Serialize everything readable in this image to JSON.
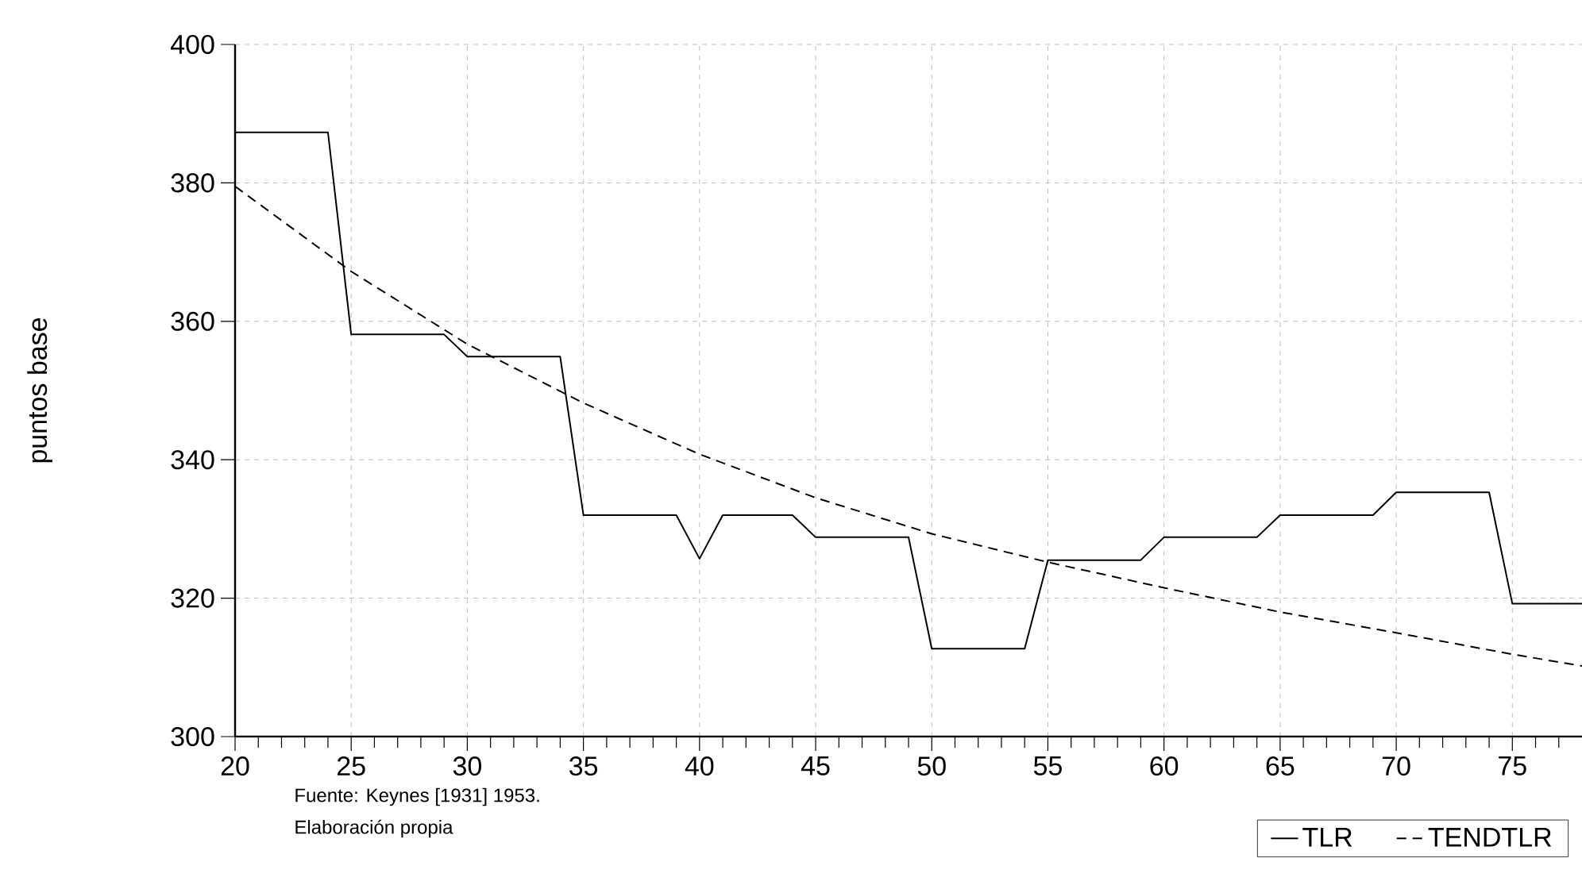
{
  "chart_data": {
    "type": "line",
    "ylabel": "puntos base",
    "annotations": [
      "Fuente: Keynes [1931] 1953.",
      "Elaboración propia"
    ],
    "xlim": [
      20,
      78
    ],
    "ylim": [
      300,
      400
    ],
    "xticks": [
      20,
      {
        "value": 21,
        "label": null
      },
      {
        "value": 22,
        "label": null
      },
      {
        "value": 23,
        "label": null
      },
      {
        "value": 24,
        "label": null
      },
      25,
      {
        "value": 26,
        "label": null
      },
      {
        "value": 27,
        "label": null
      },
      {
        "value": 28,
        "label": null
      },
      {
        "value": 29,
        "label": null
      },
      30,
      {
        "value": 31,
        "label": null
      },
      {
        "value": 32,
        "label": null
      },
      {
        "value": 33,
        "label": null
      },
      {
        "value": 34,
        "label": null
      },
      35,
      {
        "value": 36,
        "label": null
      },
      {
        "value": 37,
        "label": null
      },
      {
        "value": 38,
        "label": null
      },
      {
        "value": 39,
        "label": null
      },
      40,
      {
        "value": 41,
        "label": null
      },
      {
        "value": 42,
        "label": null
      },
      {
        "value": 43,
        "label": null
      },
      {
        "value": 44,
        "label": null
      },
      45,
      {
        "value": 46,
        "label": null
      },
      {
        "value": 47,
        "label": null
      },
      {
        "value": 48,
        "label": null
      },
      {
        "value": 49,
        "label": null
      },
      50,
      {
        "value": 51,
        "label": null
      },
      {
        "value": 52,
        "label": null
      },
      {
        "value": 53,
        "label": null
      },
      {
        "value": 54,
        "label": null
      },
      55,
      {
        "value": 56,
        "label": null
      },
      {
        "value": 57,
        "label": null
      },
      {
        "value": 58,
        "label": null
      },
      {
        "value": 59,
        "label": null
      },
      60,
      {
        "value": 61,
        "label": null
      },
      {
        "value": 62,
        "label": null
      },
      {
        "value": 63,
        "label": null
      },
      {
        "value": 64,
        "label": null
      },
      65,
      {
        "value": 66,
        "label": null
      },
      {
        "value": 67,
        "label": null
      },
      {
        "value": 68,
        "label": null
      },
      {
        "value": 69,
        "label": null
      },
      70,
      {
        "value": 71,
        "label": null
      },
      {
        "value": 72,
        "label": null
      },
      {
        "value": 73,
        "label": null
      },
      {
        "value": 74,
        "label": null
      },
      75,
      {
        "value": 76,
        "label": null
      },
      {
        "value": 77,
        "label": null
      }
    ],
    "yticks": [
      300,
      320,
      340,
      360,
      380,
      400
    ],
    "grid": true,
    "legend": "bottom right",
    "marker": "none",
    "series": [
      {
        "name": "TLR",
        "color": "#000000",
        "line_style": "solid",
        "x": [
          20,
          21,
          22,
          23,
          24,
          25,
          26,
          27,
          28,
          29,
          30,
          31,
          32,
          33,
          34,
          35,
          36,
          37,
          38,
          39,
          40,
          41,
          42,
          43,
          44,
          45,
          46,
          47,
          48,
          49,
          50,
          51,
          52,
          53,
          54,
          55,
          56,
          57,
          58,
          59,
          60,
          61,
          62,
          63,
          64,
          65,
          66,
          67,
          68,
          69,
          70,
          71,
          72,
          73,
          74,
          75,
          76,
          77,
          78
        ],
        "values": [
          387.3,
          387.3,
          387.3,
          387.3,
          387.3,
          358.1,
          358.1,
          358.1,
          358.1,
          358.1,
          354.9,
          354.9,
          354.9,
          354.9,
          354.9,
          332.0,
          332.0,
          332.0,
          332.0,
          332.0,
          325.7,
          332.0,
          332.0,
          332.0,
          332.0,
          328.8,
          328.8,
          328.8,
          328.8,
          328.8,
          312.7,
          312.7,
          312.7,
          312.7,
          312.7,
          325.5,
          325.5,
          325.5,
          325.5,
          325.5,
          328.8,
          328.8,
          328.8,
          328.8,
          328.8,
          332.0,
          332.0,
          332.0,
          332.0,
          332.0,
          335.3,
          335.3,
          335.3,
          335.3,
          335.3,
          319.2,
          319.2,
          319.2,
          319.2
        ]
      },
      {
        "name": "TENDTLR",
        "color": "#000000",
        "line_style": "dashed",
        "x": [
          20,
          25,
          30,
          35,
          40,
          45,
          50,
          55,
          60,
          65,
          70,
          75,
          78
        ],
        "values": [
          379.5,
          367.2,
          356.7,
          348.2,
          340.8,
          334.5,
          329.3,
          325.2,
          321.5,
          318.0,
          315.0,
          311.9,
          310.2
        ]
      }
    ]
  }
}
